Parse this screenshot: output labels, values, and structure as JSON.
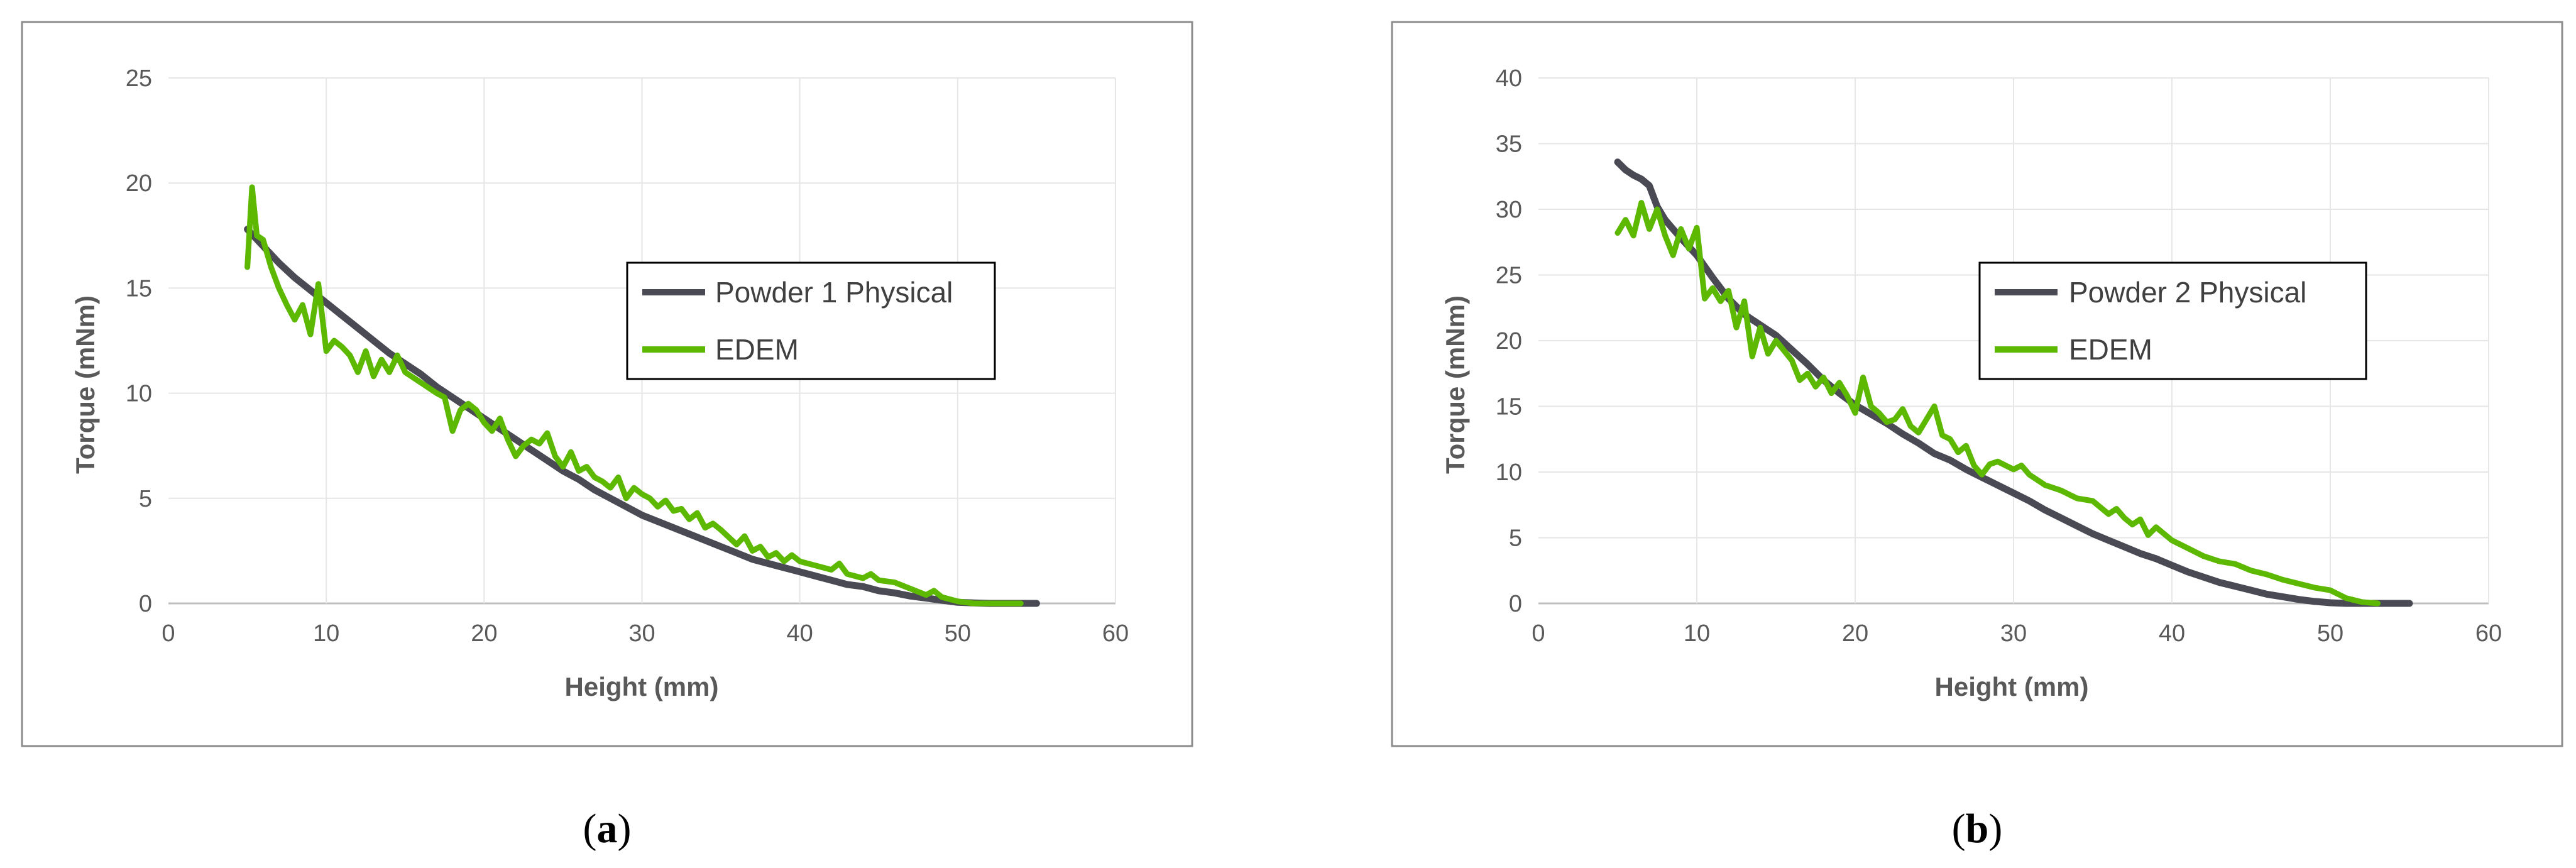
{
  "chart_data": [
    {
      "type": "line",
      "caption": "a",
      "xlabel": "Height (mm)",
      "ylabel": "Torque (mNm)",
      "xlim": [
        0,
        60
      ],
      "ylim": [
        0,
        25
      ],
      "xticks": [
        0,
        10,
        20,
        30,
        40,
        50,
        60
      ],
      "yticks": [
        0,
        5,
        10,
        15,
        20,
        25
      ],
      "grid": true,
      "legend_position": "center-right",
      "series": [
        {
          "name": "Powder 1 Physical",
          "color": "#4a4a55",
          "x": [
            5,
            6,
            7,
            8,
            9,
            10,
            11,
            12,
            13,
            14,
            15,
            16,
            17,
            18,
            19,
            20,
            21,
            22,
            23,
            24,
            25,
            26,
            27,
            28,
            29,
            30,
            31,
            32,
            33,
            34,
            35,
            36,
            37,
            38,
            39,
            40,
            41,
            42,
            43,
            44,
            45,
            46,
            47,
            48,
            49,
            50,
            51,
            52,
            53,
            54,
            55
          ],
          "y": [
            17.8,
            17.0,
            16.2,
            15.5,
            14.9,
            14.3,
            13.7,
            13.1,
            12.5,
            11.9,
            11.4,
            10.9,
            10.3,
            9.8,
            9.3,
            8.8,
            8.3,
            7.8,
            7.3,
            6.8,
            6.3,
            5.9,
            5.4,
            5.0,
            4.6,
            4.2,
            3.9,
            3.6,
            3.3,
            3.0,
            2.7,
            2.4,
            2.1,
            1.9,
            1.7,
            1.5,
            1.3,
            1.1,
            0.9,
            0.8,
            0.6,
            0.5,
            0.35,
            0.25,
            0.15,
            0.05,
            0.02,
            0.0,
            0.0,
            0.0,
            0.0
          ]
        },
        {
          "name": "EDEM",
          "color": "#5cb800",
          "x": [
            5,
            5.3,
            5.6,
            6,
            6.5,
            7,
            7.5,
            8,
            8.5,
            9,
            9.5,
            10,
            10.5,
            11,
            11.5,
            12,
            12.5,
            13,
            13.5,
            14,
            14.5,
            15,
            16,
            17,
            17.5,
            18,
            18.5,
            19,
            19.5,
            20,
            20.5,
            21,
            21.5,
            22,
            22.5,
            23,
            23.5,
            24,
            24.5,
            25,
            25.5,
            26,
            26.5,
            27,
            27.5,
            28,
            28.5,
            29,
            29.5,
            30,
            30.5,
            31,
            31.5,
            32,
            32.5,
            33,
            33.5,
            34,
            34.5,
            35,
            36,
            36.5,
            37,
            37.5,
            38,
            38.5,
            39,
            39.5,
            40,
            41,
            42,
            42.5,
            43,
            44,
            44.5,
            45,
            46,
            47,
            48,
            48.5,
            49,
            50,
            51,
            52,
            53,
            54
          ],
          "y": [
            16.0,
            19.8,
            17.5,
            17.3,
            16.0,
            15.0,
            14.2,
            13.5,
            14.2,
            12.8,
            15.2,
            12.0,
            12.5,
            12.2,
            11.8,
            11.0,
            12.0,
            10.8,
            11.6,
            11.0,
            11.8,
            11.0,
            10.5,
            10.0,
            9.8,
            8.2,
            9.2,
            9.5,
            9.2,
            8.6,
            8.2,
            8.8,
            7.8,
            7.0,
            7.5,
            7.8,
            7.6,
            8.1,
            7.0,
            6.5,
            7.2,
            6.3,
            6.5,
            6.0,
            5.8,
            5.5,
            6.0,
            5.0,
            5.5,
            5.2,
            5.0,
            4.6,
            4.9,
            4.4,
            4.5,
            4.0,
            4.3,
            3.6,
            3.8,
            3.5,
            2.8,
            3.2,
            2.5,
            2.7,
            2.2,
            2.4,
            2.0,
            2.3,
            2.0,
            1.8,
            1.6,
            1.9,
            1.4,
            1.2,
            1.4,
            1.1,
            1.0,
            0.7,
            0.4,
            0.6,
            0.3,
            0.1,
            0.0,
            0.0,
            0.0,
            0.0
          ]
        }
      ]
    },
    {
      "type": "line",
      "caption": "b",
      "xlabel": "Height (mm)",
      "ylabel": "Torque (mNm)",
      "xlim": [
        0,
        60
      ],
      "ylim": [
        0,
        40
      ],
      "xticks": [
        0,
        10,
        20,
        30,
        40,
        50,
        60
      ],
      "yticks": [
        0,
        5,
        10,
        15,
        20,
        25,
        30,
        35,
        40
      ],
      "grid": true,
      "legend_position": "center-right",
      "series": [
        {
          "name": "Powder 2 Physical",
          "color": "#4a4a55",
          "x": [
            5,
            5.5,
            6,
            6.5,
            7,
            7.5,
            8,
            8.5,
            9,
            10,
            11,
            12,
            13,
            14,
            15,
            16,
            17,
            18,
            19,
            20,
            21,
            22,
            23,
            24,
            25,
            26,
            27,
            28,
            29,
            30,
            31,
            32,
            33,
            34,
            35,
            36,
            37,
            38,
            39,
            40,
            41,
            42,
            43,
            44,
            45,
            46,
            47,
            48,
            49,
            50,
            51,
            53,
            55
          ],
          "y": [
            33.6,
            33.0,
            32.6,
            32.3,
            31.8,
            30.2,
            29.2,
            28.5,
            27.8,
            26.5,
            24.8,
            23.2,
            22.0,
            21.2,
            20.4,
            19.3,
            18.2,
            17.0,
            16.0,
            15.1,
            14.4,
            13.7,
            12.9,
            12.2,
            11.4,
            10.9,
            10.2,
            9.6,
            9.0,
            8.4,
            7.8,
            7.1,
            6.5,
            5.9,
            5.3,
            4.8,
            4.3,
            3.8,
            3.4,
            2.9,
            2.4,
            2.0,
            1.6,
            1.3,
            1.0,
            0.7,
            0.5,
            0.3,
            0.15,
            0.05,
            0.0,
            0.0,
            0.0
          ]
        },
        {
          "name": "EDEM",
          "color": "#5cb800",
          "x": [
            5,
            5.5,
            6,
            6.5,
            7,
            7.5,
            8,
            8.5,
            9,
            9.5,
            10,
            10.5,
            11,
            11.5,
            12,
            12.5,
            13,
            13.5,
            14,
            14.5,
            15,
            16,
            16.5,
            17,
            17.5,
            18,
            18.5,
            19,
            19.5,
            20,
            20.5,
            21,
            21.5,
            22,
            22.5,
            23,
            23.5,
            24,
            24.5,
            25,
            25.5,
            26,
            26.5,
            27,
            27.5,
            28,
            28.5,
            29,
            30,
            30.5,
            31,
            32,
            33,
            34,
            35,
            36,
            36.5,
            37,
            37.5,
            38,
            38.5,
            39,
            40,
            41,
            42,
            43,
            44,
            45,
            46,
            47,
            48,
            49,
            50,
            51,
            52,
            53
          ],
          "y": [
            28.2,
            29.2,
            28.0,
            30.5,
            28.5,
            30.0,
            28.0,
            26.5,
            28.5,
            27.0,
            28.6,
            23.2,
            24.0,
            23.0,
            23.8,
            21.0,
            23.0,
            18.8,
            21.0,
            19.0,
            20.0,
            18.5,
            17.0,
            17.5,
            16.5,
            17.2,
            16.0,
            16.8,
            15.8,
            14.5,
            17.2,
            15.0,
            14.5,
            13.8,
            14.0,
            14.8,
            13.5,
            13.0,
            14.0,
            15.0,
            12.8,
            12.5,
            11.5,
            12.0,
            10.5,
            9.8,
            10.6,
            10.8,
            10.2,
            10.5,
            9.8,
            9.0,
            8.6,
            8.0,
            7.8,
            6.8,
            7.2,
            6.5,
            6.0,
            6.4,
            5.2,
            5.8,
            4.8,
            4.2,
            3.6,
            3.2,
            3.0,
            2.5,
            2.2,
            1.8,
            1.5,
            1.2,
            1.0,
            0.4,
            0.1,
            0.0
          ]
        }
      ]
    }
  ]
}
